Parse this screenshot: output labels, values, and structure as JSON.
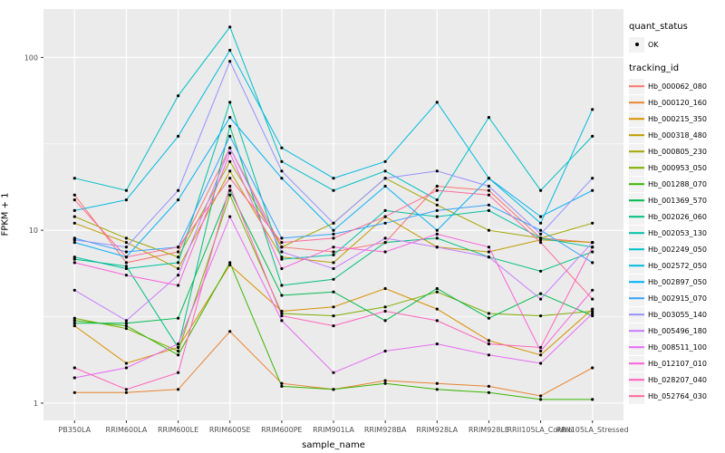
{
  "figure": {
    "x_axis_label": "sample_name",
    "y_axis_label": "FPKM + 1",
    "legend": {
      "quant_title": "quant_status",
      "quant_items": [
        {
          "label": "OK",
          "shape": "point",
          "color": "#000000"
        }
      ],
      "tracking_title": "tracking_id"
    }
  },
  "colors": {
    "panel_background": "#EBEBEB",
    "grid_major": "#FFFFFF",
    "grid_minor": "#FFFFFF",
    "tick_mark": "#333333",
    "tick_label": "#4D4D4D",
    "point": "#000000",
    "legend_key_background": "#F2F2F2"
  },
  "chart_data": {
    "type": "line",
    "title": "",
    "xlabel": "sample_name",
    "ylabel": "FPKM + 1",
    "y_scale": "log10",
    "ylim": [
      1,
      160
    ],
    "y_ticks": [
      1,
      10,
      100
    ],
    "y_minor_ticks": [
      3.162,
      31.62
    ],
    "grid": true,
    "legend_position": "right",
    "point_marker": {
      "legend": "quant_status",
      "label": "OK",
      "color": "#000000"
    },
    "categories": [
      "PB350LA",
      "RRIM600LA",
      "RRIM600LE",
      "RRIM600SE",
      "RRIM600PE",
      "RRIM901LA",
      "RRIM928BA",
      "RRIM928LA",
      "RRIM928LE",
      "RRII105LA_Control",
      "RRII105LA_Stressed"
    ],
    "series": [
      {
        "name": "Hb_000062_080",
        "color": "#F8766D",
        "values": [
          16,
          6.5,
          7.5,
          30,
          8,
          7.5,
          8.5,
          18,
          17,
          9,
          8.5
        ]
      },
      {
        "name": "Hb_000120_160",
        "color": "#EA8331",
        "values": [
          1.15,
          1.15,
          1.2,
          2.6,
          1.3,
          1.2,
          1.35,
          1.3,
          1.25,
          1.1,
          1.6
        ]
      },
      {
        "name": "Hb_000215_350",
        "color": "#D89000",
        "values": [
          2.8,
          1.7,
          2.1,
          6.3,
          3.4,
          3.6,
          4.6,
          3.5,
          2.3,
          1.9,
          3.5
        ]
      },
      {
        "name": "Hb_000318_480",
        "color": "#C09B00",
        "values": [
          11,
          8.5,
          6,
          22,
          7,
          6.5,
          12,
          8,
          7.5,
          8.8,
          8.5
        ]
      },
      {
        "name": "Hb_000805_230",
        "color": "#A3A500",
        "values": [
          12,
          9,
          7,
          25,
          8,
          11,
          20,
          14,
          10,
          9,
          11
        ]
      },
      {
        "name": "Hb_000953_050",
        "color": "#7CAE00",
        "values": [
          3.1,
          2.7,
          2.0,
          16,
          3.3,
          3.2,
          3.6,
          4.4,
          3.3,
          3.2,
          3.4
        ]
      },
      {
        "name": "Hb_001288_070",
        "color": "#39B600",
        "values": [
          3.0,
          2.8,
          1.9,
          6.5,
          1.25,
          1.2,
          1.3,
          1.2,
          1.15,
          1.05,
          1.05
        ]
      },
      {
        "name": "Hb_001369_570",
        "color": "#00BB4E",
        "values": [
          2.9,
          2.9,
          3.1,
          17,
          4.2,
          4.4,
          3.0,
          4.6,
          3.1,
          4.3,
          3.2
        ]
      },
      {
        "name": "Hb_002026_060",
        "color": "#00BF7D",
        "values": [
          6.8,
          6.2,
          2.1,
          40,
          4.8,
          5.2,
          8.5,
          9.0,
          7.0,
          5.8,
          7.5
        ]
      },
      {
        "name": "Hb_002053_130",
        "color": "#00C1A3",
        "values": [
          7.0,
          6.0,
          6.5,
          55,
          6.8,
          7.2,
          13,
          12,
          13,
          9.0,
          8.0
        ]
      },
      {
        "name": "Hb_002249_050",
        "color": "#00BFC4",
        "values": [
          20,
          17,
          60,
          150,
          25,
          17,
          22,
          15,
          45,
          17,
          35
        ]
      },
      {
        "name": "Hb_002572_050",
        "color": "#00BAE0",
        "values": [
          13,
          15,
          35,
          110,
          30,
          20,
          25,
          55,
          20,
          11,
          50
        ]
      },
      {
        "name": "Hb_002897_050",
        "color": "#00B0F6",
        "values": [
          8.5,
          7.0,
          15,
          45,
          20,
          10,
          18,
          10,
          20,
          12,
          17
        ]
      },
      {
        "name": "Hb_002915_070",
        "color": "#35A2FF",
        "values": [
          9,
          7.5,
          8,
          35,
          9,
          9.5,
          11,
          13,
          14,
          10,
          6.5
        ]
      },
      {
        "name": "Hb_003055_140",
        "color": "#9590FF",
        "values": [
          8.8,
          8.0,
          17,
          95,
          22,
          11,
          20,
          22,
          18,
          9.5,
          20
        ]
      },
      {
        "name": "Hb_005496_180",
        "color": "#C77CFF",
        "values": [
          4.5,
          3.0,
          5.5,
          30,
          7.5,
          6.0,
          9.0,
          8.0,
          7.0,
          4.0,
          8.5
        ]
      },
      {
        "name": "Hb_008511_100",
        "color": "#E76BF3",
        "values": [
          1.4,
          1.6,
          2.2,
          12,
          3.0,
          1.5,
          2.0,
          2.2,
          1.9,
          1.7,
          3.3
        ]
      },
      {
        "name": "Hb_012107_010",
        "color": "#FA62DB",
        "values": [
          6.5,
          5.5,
          4.8,
          28,
          6.0,
          8.0,
          7.5,
          9.5,
          8.0,
          2.0,
          4.5
        ]
      },
      {
        "name": "Hb_028207_040",
        "color": "#FF62BC",
        "values": [
          1.6,
          1.2,
          1.5,
          18,
          3.2,
          2.8,
          3.4,
          3.0,
          2.2,
          2.1,
          8.0
        ]
      },
      {
        "name": "Hb_052764_030",
        "color": "#FF6A98",
        "values": [
          15,
          7.0,
          8.0,
          20,
          8.5,
          9.0,
          12,
          17,
          16,
          8.5,
          4.0
        ]
      }
    ]
  }
}
